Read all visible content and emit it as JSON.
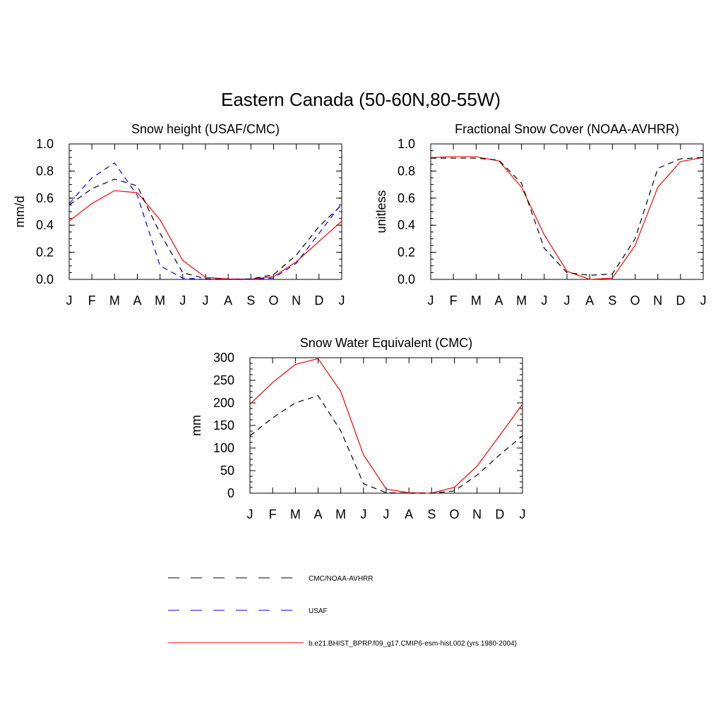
{
  "page_title": "Eastern Canada (50-60N,80-55W)",
  "months": [
    "J",
    "F",
    "M",
    "A",
    "M",
    "J",
    "J",
    "A",
    "S",
    "O",
    "N",
    "D",
    "J"
  ],
  "legend": [
    {
      "name": "CMC/NOAA-AVHRR",
      "color": "#000000",
      "dash": "dashed"
    },
    {
      "name": "USAF",
      "color": "#0000ff",
      "dash": "dashed"
    },
    {
      "name": "b.e21.BHIST_BPRP.f09_g17.CMIP6-esm-hist.002 (yrs 1980-2004)",
      "color": "#ff0000",
      "dash": "solid"
    }
  ],
  "chart_data": [
    {
      "type": "line",
      "title": "Snow height (USAF/CMC)",
      "xlabel": "",
      "ylabel": "mm/d",
      "ylim": [
        0,
        1.0
      ],
      "yticks": [
        0.0,
        0.2,
        0.4,
        0.6,
        0.8,
        1.0
      ],
      "ytick_labels": [
        "0.0",
        "0.2",
        "0.4",
        "0.6",
        "0.8",
        "1.0"
      ],
      "categories": [
        "J",
        "F",
        "M",
        "A",
        "M",
        "J",
        "J",
        "A",
        "S",
        "O",
        "N",
        "D",
        "J"
      ],
      "series": [
        {
          "name": "b.e21.BHIST_BPRP.f09_g17.CMIP6-esm-hist.002 (yrs 1980-2004)",
          "color": "#ff0000",
          "dash": "solid",
          "values": [
            0.43,
            0.56,
            0.655,
            0.64,
            0.44,
            0.14,
            0.015,
            0.003,
            0.002,
            0.02,
            0.13,
            0.28,
            0.43
          ]
        },
        {
          "name": "CMC/NOAA-AVHRR",
          "color": "#000000",
          "dash": "dashed",
          "values": [
            0.55,
            0.67,
            0.74,
            0.69,
            0.34,
            0.05,
            0.005,
            0.001,
            0.003,
            0.035,
            0.18,
            0.39,
            0.55
          ]
        },
        {
          "name": "USAF",
          "color": "#0000ff",
          "dash": "dashed",
          "values": [
            0.56,
            0.75,
            0.86,
            0.62,
            0.1,
            0.01,
            0.0,
            0.0,
            0.0,
            0.01,
            0.12,
            0.34,
            0.56
          ]
        }
      ]
    },
    {
      "type": "line",
      "title": "Fractional Snow Cover (NOAA-AVHRR)",
      "xlabel": "",
      "ylabel": "unitless",
      "ylim": [
        0,
        1.0
      ],
      "yticks": [
        0.0,
        0.2,
        0.4,
        0.6,
        0.8,
        1.0
      ],
      "ytick_labels": [
        "0.0",
        "0.2",
        "0.4",
        "0.6",
        "0.8",
        "1.0"
      ],
      "categories": [
        "J",
        "F",
        "M",
        "A",
        "M",
        "J",
        "J",
        "A",
        "S",
        "O",
        "N",
        "D",
        "J"
      ],
      "series": [
        {
          "name": "b.e21.BHIST_BPRP.f09_g17.CMIP6-esm-hist.002 (yrs 1980-2004)",
          "color": "#ff0000",
          "dash": "solid",
          "values": [
            0.9,
            0.905,
            0.905,
            0.875,
            0.68,
            0.33,
            0.06,
            0.0,
            0.01,
            0.25,
            0.68,
            0.87,
            0.9
          ]
        },
        {
          "name": "CMC/NOAA-AVHRR",
          "color": "#000000",
          "dash": "dashed",
          "values": [
            0.895,
            0.895,
            0.895,
            0.88,
            0.71,
            0.23,
            0.05,
            0.03,
            0.04,
            0.3,
            0.82,
            0.89,
            0.9
          ]
        }
      ]
    },
    {
      "type": "line",
      "title": "Snow Water Equivalent (CMC)",
      "xlabel": "",
      "ylabel": "mm",
      "ylim": [
        0,
        300
      ],
      "yticks": [
        0,
        50,
        100,
        150,
        200,
        250,
        300
      ],
      "ytick_labels": [
        "0",
        "50",
        "100",
        "150",
        "200",
        "250",
        "300"
      ],
      "categories": [
        "J",
        "F",
        "M",
        "A",
        "M",
        "J",
        "J",
        "A",
        "S",
        "O",
        "N",
        "D",
        "J"
      ],
      "series": [
        {
          "name": "b.e21.BHIST_BPRP.f09_g17.CMIP6-esm-hist.002 (yrs 1980-2004)",
          "color": "#ff0000",
          "dash": "solid",
          "values": [
            197,
            245,
            285,
            298,
            225,
            85,
            9,
            1,
            0,
            13,
            60,
            128,
            197
          ]
        },
        {
          "name": "CMC/NOAA-AVHRR",
          "color": "#000000",
          "dash": "dashed",
          "values": [
            127,
            167,
            200,
            216,
            138,
            21,
            1,
            0,
            0,
            5,
            40,
            85,
            127
          ]
        }
      ]
    }
  ]
}
